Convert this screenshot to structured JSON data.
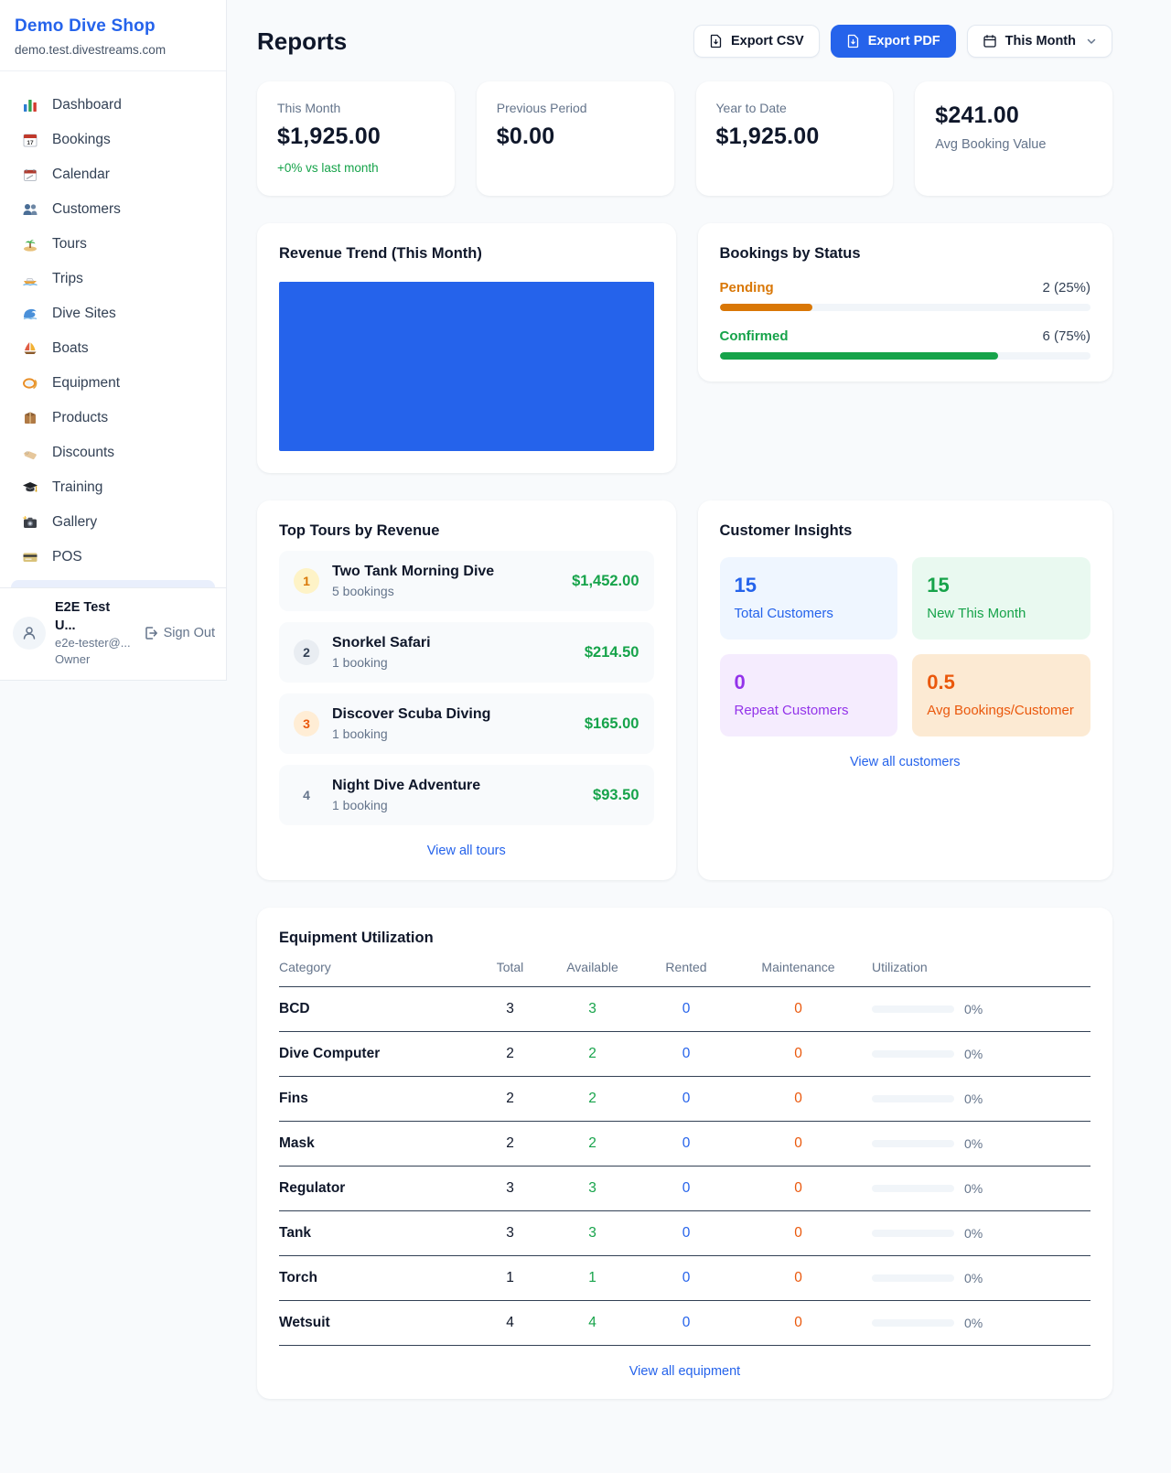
{
  "colors": {
    "primary_blue": "#2563eb",
    "green": "#16a34a",
    "amber": "#d97706",
    "orange": "#ea580c",
    "purple": "#9333ea",
    "page_background": "#f8fafc"
  },
  "sidebar": {
    "brand": {
      "name": "Demo Dive Shop",
      "domain": "demo.test.divestreams.com"
    },
    "nav": [
      {
        "icon": "bar-chart",
        "label": "Dashboard"
      },
      {
        "icon": "calendar-17",
        "label": "Bookings"
      },
      {
        "icon": "tear-off-calendar",
        "label": "Calendar"
      },
      {
        "icon": "users",
        "label": "Customers"
      },
      {
        "icon": "desert-island",
        "label": "Tours"
      },
      {
        "icon": "speedboat",
        "label": "Trips"
      },
      {
        "icon": "water-wave",
        "label": "Dive Sites"
      },
      {
        "icon": "sailboat",
        "label": "Boats"
      },
      {
        "icon": "diving-mask",
        "label": "Equipment"
      },
      {
        "icon": "package",
        "label": "Products"
      },
      {
        "icon": "label-tag",
        "label": "Discounts"
      },
      {
        "icon": "graduation-cap",
        "label": "Training"
      },
      {
        "icon": "camera-flash",
        "label": "Gallery"
      },
      {
        "icon": "credit-card",
        "label": "POS"
      }
    ],
    "user": {
      "name": "E2E Test U...",
      "email": "e2e-tester@...",
      "role": "Owner",
      "sign_out_label": "Sign Out"
    }
  },
  "header": {
    "title": "Reports",
    "export_csv_label": "Export CSV",
    "export_pdf_label": "Export PDF",
    "period_label": "This Month"
  },
  "stats": [
    {
      "label": "This Month",
      "value": "$1,925.00",
      "delta": "+0% vs last month"
    },
    {
      "label": "Previous Period",
      "value": "$0.00"
    },
    {
      "label": "Year to Date",
      "value": "$1,925.00"
    },
    {
      "label": "Avg Booking Value",
      "value": "$241.00"
    }
  ],
  "revenue_trend": {
    "title": "Revenue Trend (This Month)",
    "bar_color": "#2563eb"
  },
  "bookings_by_status": {
    "title": "Bookings by Status",
    "rows": [
      {
        "label": "Pending",
        "count_text": "2 (25%)",
        "pct": 25,
        "color": "#d97706"
      },
      {
        "label": "Confirmed",
        "count_text": "6 (75%)",
        "pct": 75,
        "color": "#16a34a"
      }
    ]
  },
  "top_tours": {
    "title": "Top Tours by Revenue",
    "view_all_label": "View all tours",
    "items": [
      {
        "rank": "1",
        "name": "Two Tank Morning Dive",
        "bookings": "5 bookings",
        "revenue": "$1,452.00"
      },
      {
        "rank": "2",
        "name": "Snorkel Safari",
        "bookings": "1 booking",
        "revenue": "$214.50"
      },
      {
        "rank": "3",
        "name": "Discover Scuba Diving",
        "bookings": "1 booking",
        "revenue": "$165.00"
      },
      {
        "rank": "4",
        "name": "Night Dive Adventure",
        "bookings": "1 booking",
        "revenue": "$93.50"
      }
    ]
  },
  "customer_insights": {
    "title": "Customer Insights",
    "view_all_label": "View all customers",
    "tiles": [
      {
        "value": "15",
        "label": "Total Customers"
      },
      {
        "value": "15",
        "label": "New This Month"
      },
      {
        "value": "0",
        "label": "Repeat Customers"
      },
      {
        "value": "0.5",
        "label": "Avg Bookings/Customer"
      }
    ]
  },
  "equipment": {
    "title": "Equipment Utilization",
    "view_all_label": "View all equipment",
    "columns": [
      "Category",
      "Total",
      "Available",
      "Rented",
      "Maintenance",
      "Utilization"
    ],
    "rows": [
      {
        "category": "BCD",
        "total": "3",
        "available": "3",
        "rented": "0",
        "maintenance": "0",
        "utilization": "0%",
        "pct": 0
      },
      {
        "category": "Dive Computer",
        "total": "2",
        "available": "2",
        "rented": "0",
        "maintenance": "0",
        "utilization": "0%",
        "pct": 0
      },
      {
        "category": "Fins",
        "total": "2",
        "available": "2",
        "rented": "0",
        "maintenance": "0",
        "utilization": "0%",
        "pct": 0
      },
      {
        "category": "Mask",
        "total": "2",
        "available": "2",
        "rented": "0",
        "maintenance": "0",
        "utilization": "0%",
        "pct": 0
      },
      {
        "category": "Regulator",
        "total": "3",
        "available": "3",
        "rented": "0",
        "maintenance": "0",
        "utilization": "0%",
        "pct": 0
      },
      {
        "category": "Tank",
        "total": "3",
        "available": "3",
        "rented": "0",
        "maintenance": "0",
        "utilization": "0%",
        "pct": 0
      },
      {
        "category": "Torch",
        "total": "1",
        "available": "1",
        "rented": "0",
        "maintenance": "0",
        "utilization": "0%",
        "pct": 0
      },
      {
        "category": "Wetsuit",
        "total": "4",
        "available": "4",
        "rented": "0",
        "maintenance": "0",
        "utilization": "0%",
        "pct": 0
      }
    ]
  }
}
